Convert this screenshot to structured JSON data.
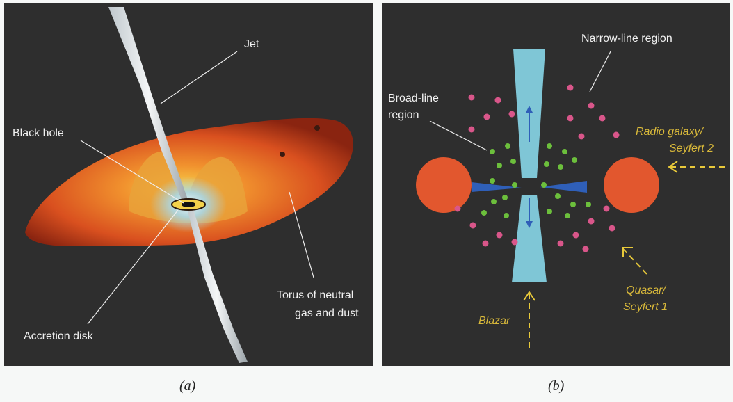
{
  "panel_a": {
    "labels": {
      "jet": "Jet",
      "black_hole": "Black hole",
      "accretion_disk": "Accretion disk",
      "torus_line1": "Torus of neutral",
      "torus_line2": "gas and dust"
    },
    "caption": "(a)"
  },
  "panel_b": {
    "labels": {
      "narrow_line": "Narrow-line region",
      "broad_line1": "Broad-line",
      "broad_line2": "region",
      "radio1": "Radio galaxy/",
      "radio2": "Seyfert 2",
      "quasar1": "Quasar/",
      "quasar2": "Seyfert 1",
      "blazar": "Blazar"
    },
    "caption": "(b)"
  },
  "colors": {
    "background": "#2e2e2e",
    "torus": "#e2572e",
    "jet": "#7fc6d6",
    "broad_line_clouds": "#6cbf3c",
    "narrow_line_clouds": "#d9568a",
    "viewing_arrows": "#e8c93a"
  }
}
